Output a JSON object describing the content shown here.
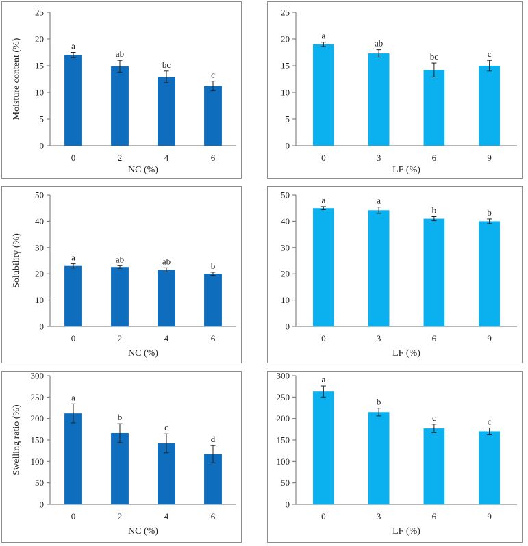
{
  "colors": {
    "nc": "#0e6ebd",
    "lf": "#0bb0ef",
    "frame": "#8c8c8c",
    "axis": "#6e6e6e",
    "error": "#222222"
  },
  "chart_data": [
    {
      "type": "bar",
      "title": "",
      "xlabel": "NC (%)",
      "ylabel": "Moisture content (%)",
      "categories": [
        "0",
        "2",
        "4",
        "6"
      ],
      "values": [
        17.0,
        14.9,
        12.9,
        11.2
      ],
      "errors": [
        0.5,
        1.1,
        1.1,
        0.9
      ],
      "letters": [
        "a",
        "ab",
        "bc",
        "c"
      ],
      "ylim": [
        0,
        25
      ],
      "yticks": [
        0,
        5,
        10,
        15,
        20,
        25
      ],
      "color": "nc",
      "grid": false
    },
    {
      "type": "bar",
      "title": "",
      "xlabel": "LF (%)",
      "ylabel": "",
      "categories": [
        "0",
        "3",
        "6",
        "9"
      ],
      "values": [
        19.0,
        17.3,
        14.2,
        15.0
      ],
      "errors": [
        0.4,
        0.7,
        1.3,
        1.0
      ],
      "letters": [
        "a",
        "ab",
        "bc",
        "c"
      ],
      "ylim": [
        0,
        25
      ],
      "yticks": [
        0,
        5,
        10,
        15,
        20,
        25
      ],
      "color": "lf",
      "grid": false
    },
    {
      "type": "bar",
      "title": "",
      "xlabel": "NC (%)",
      "ylabel": "Solubility (%)",
      "categories": [
        "0",
        "2",
        "4",
        "6"
      ],
      "values": [
        23.0,
        22.6,
        21.5,
        20.0
      ],
      "errors": [
        0.8,
        0.5,
        0.8,
        0.6
      ],
      "letters": [
        "a",
        "ab",
        "ab",
        "b"
      ],
      "ylim": [
        0,
        50
      ],
      "yticks": [
        0,
        10,
        20,
        30,
        40,
        50
      ],
      "color": "nc",
      "grid": false
    },
    {
      "type": "bar",
      "title": "",
      "xlabel": "LF (%)",
      "ylabel": "",
      "categories": [
        "0",
        "3",
        "6",
        "9"
      ],
      "values": [
        45.0,
        44.2,
        41.0,
        40.0
      ],
      "errors": [
        0.6,
        1.2,
        0.8,
        0.9
      ],
      "letters": [
        "a",
        "a",
        "b",
        "b"
      ],
      "ylim": [
        0,
        50
      ],
      "yticks": [
        0,
        10,
        20,
        30,
        40,
        50
      ],
      "color": "lf",
      "grid": false
    },
    {
      "type": "bar",
      "title": "",
      "xlabel": "NC (%)",
      "ylabel": "Swelling ratio (%)",
      "categories": [
        "0",
        "2",
        "4",
        "6"
      ],
      "values": [
        212,
        166,
        142,
        117
      ],
      "errors": [
        22,
        22,
        22,
        20
      ],
      "letters": [
        "a",
        "b",
        "c",
        "d"
      ],
      "ylim": [
        0,
        300
      ],
      "yticks": [
        0,
        50,
        100,
        150,
        200,
        250,
        300
      ],
      "color": "nc",
      "grid": false
    },
    {
      "type": "bar",
      "title": "",
      "xlabel": "LF (%)",
      "ylabel": "",
      "categories": [
        "0",
        "3",
        "6",
        "9"
      ],
      "values": [
        263,
        215,
        177,
        170
      ],
      "errors": [
        13,
        9,
        10,
        8
      ],
      "letters": [
        "a",
        "b",
        "c",
        "c"
      ],
      "ylim": [
        0,
        300
      ],
      "yticks": [
        0,
        50,
        100,
        150,
        200,
        250,
        300
      ],
      "color": "lf",
      "grid": false
    }
  ]
}
